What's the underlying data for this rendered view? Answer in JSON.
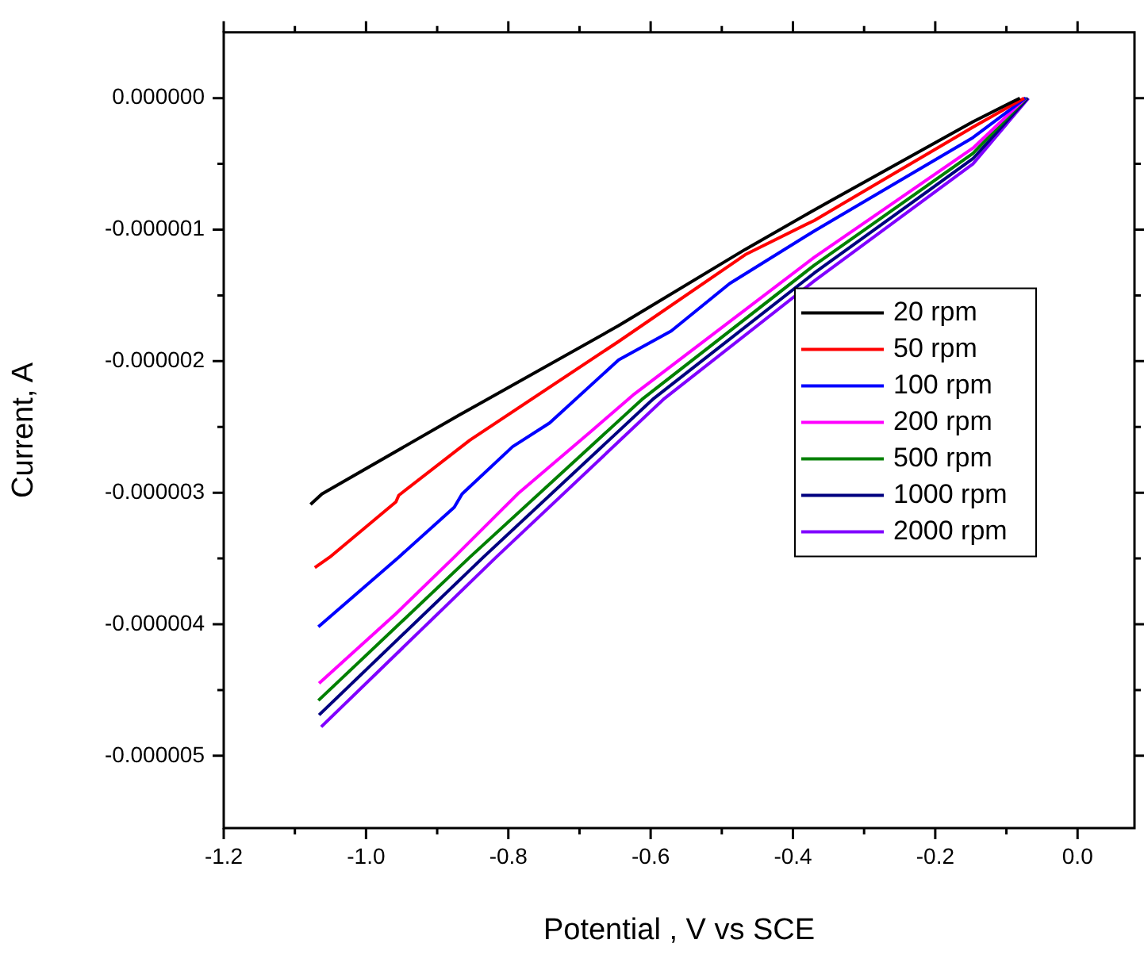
{
  "chart_data": {
    "type": "line",
    "xlabel": "Potential , V vs SCE",
    "ylabel": "Current, A",
    "xlim": [
      -1.2,
      0.08
    ],
    "ylim": [
      -5.55e-06,
      5e-07
    ],
    "xticks": [
      {
        "value": -1.2,
        "label": "-1.2"
      },
      {
        "value": -1.1,
        "label": null
      },
      {
        "value": -1.0,
        "label": "-1.0"
      },
      {
        "value": -0.9,
        "label": null
      },
      {
        "value": -0.8,
        "label": "-0.8"
      },
      {
        "value": -0.7,
        "label": null
      },
      {
        "value": -0.6,
        "label": "-0.6"
      },
      {
        "value": -0.5,
        "label": null
      },
      {
        "value": -0.4,
        "label": "-0.4"
      },
      {
        "value": -0.3,
        "label": null
      },
      {
        "value": -0.2,
        "label": "-0.2"
      },
      {
        "value": -0.1,
        "label": null
      },
      {
        "value": 0,
        "label": "0.0"
      }
    ],
    "yticks": [
      {
        "value": 0,
        "label": "0.000000"
      },
      {
        "value": -5e-07,
        "label": null
      },
      {
        "value": -1e-06,
        "label": "-0.000001"
      },
      {
        "value": -1.5e-06,
        "label": null
      },
      {
        "value": -2e-06,
        "label": "-0.000002"
      },
      {
        "value": -2.5e-06,
        "label": null
      },
      {
        "value": -3e-06,
        "label": "-0.000003"
      },
      {
        "value": -3.5e-06,
        "label": null
      },
      {
        "value": -4e-06,
        "label": "-0.000004"
      },
      {
        "value": -4.5e-06,
        "label": null
      },
      {
        "value": -5e-06,
        "label": "-0.000005"
      }
    ],
    "grid": false,
    "legend": "right",
    "marker": "none",
    "line_style": "solid",
    "series": [
      {
        "name": "20 rpm",
        "color": "#000000",
        "x": [
          -1.078,
          -1.062,
          -0.869,
          -0.645,
          -0.467,
          -0.37,
          -0.147,
          -0.081
        ],
        "values": [
          -3.09e-06,
          -3.01e-06,
          -2.41e-06,
          -1.73e-06,
          -1.15e-06,
          -8.5e-07,
          -1.8e-07,
          0
        ]
      },
      {
        "name": "50 rpm",
        "color": "#ff0000",
        "x": [
          -1.072,
          -1.051,
          -0.958,
          -0.954,
          -0.854,
          -0.645,
          -0.467,
          -0.37,
          -0.147,
          -0.075
        ],
        "values": [
          -3.57e-06,
          -3.49e-06,
          -3.07e-06,
          -3.02e-06,
          -2.6e-06,
          -1.85e-06,
          -1.19e-06,
          -9.3e-07,
          -2.2e-07,
          0
        ]
      },
      {
        "name": "100 rpm",
        "color": "#0000ff",
        "x": [
          -1.067,
          -0.954,
          -0.876,
          -0.865,
          -0.794,
          -0.742,
          -0.645,
          -0.571,
          -0.489,
          -0.37,
          -0.147,
          -0.073
        ],
        "values": [
          -4.02e-06,
          -3.49e-06,
          -3.11e-06,
          -3.01e-06,
          -2.65e-06,
          -2.47e-06,
          -1.99e-06,
          -1.77e-06,
          -1.41e-06,
          -1.01e-06,
          -3e-07,
          0
        ]
      },
      {
        "name": "200 rpm",
        "color": "#ff00ff",
        "x": [
          -1.066,
          -0.958,
          -0.876,
          -0.787,
          -0.683,
          -0.623,
          -0.37,
          -0.147,
          -0.073
        ],
        "values": [
          -4.45e-06,
          -3.92e-06,
          -3.49e-06,
          -3.01e-06,
          -2.53e-06,
          -2.25e-06,
          -1.21e-06,
          -3.8e-07,
          0
        ]
      },
      {
        "name": "500 rpm",
        "color": "#008000",
        "x": [
          -1.067,
          -0.854,
          -0.612,
          -0.37,
          -0.147,
          -0.072
        ],
        "values": [
          -4.58e-06,
          -3.49e-06,
          -2.29e-06,
          -1.27e-06,
          -4.2e-07,
          0
        ]
      },
      {
        "name": "1000 rpm",
        "color": "#000080",
        "x": [
          -1.066,
          -0.835,
          -0.597,
          -0.37,
          -0.147,
          -0.07
        ],
        "values": [
          -4.69e-06,
          -3.49e-06,
          -2.29e-06,
          -1.33e-06,
          -4.6e-07,
          0
        ]
      },
      {
        "name": "2000 rpm",
        "color": "#8000ff",
        "x": [
          -1.063,
          -0.817,
          -0.582,
          -0.37,
          -0.147,
          -0.069
        ],
        "values": [
          -4.78e-06,
          -3.49e-06,
          -2.29e-06,
          -1.39e-06,
          -5e-07,
          0
        ]
      }
    ]
  }
}
